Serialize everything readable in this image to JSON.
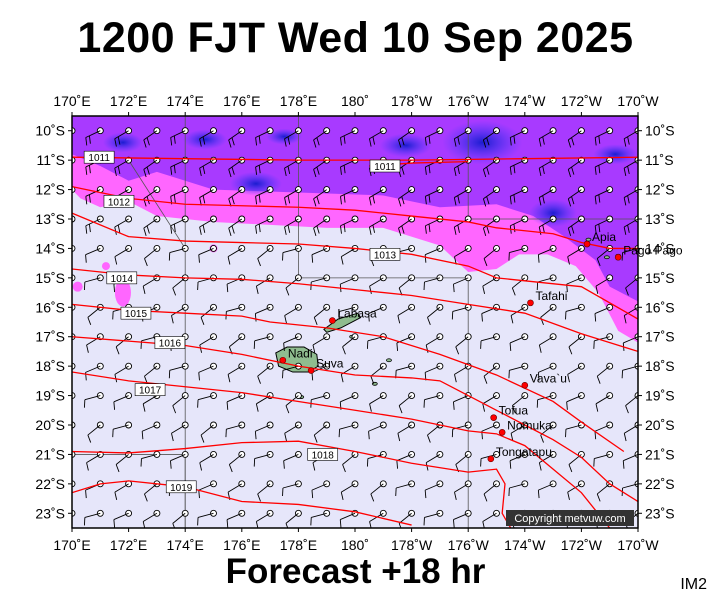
{
  "title": "1200 FJT Wed 10 Sep 2025",
  "footer": "Forecast +18 hr",
  "image_tag": "IM2",
  "copyright": "Copyright metvuw.com",
  "map_extent": {
    "lon_min": 170,
    "lon_max": 190,
    "lat_max": -9.5,
    "lat_min": -23.5
  },
  "lon_ticks": [
    {
      "lon": 170,
      "label": "170˚E"
    },
    {
      "lon": 172,
      "label": "172˚E"
    },
    {
      "lon": 174,
      "label": "174˚E"
    },
    {
      "lon": 176,
      "label": "176˚E"
    },
    {
      "lon": 178,
      "label": "178˚E"
    },
    {
      "lon": 180,
      "label": "180˚"
    },
    {
      "lon": 182,
      "label": "178˚W"
    },
    {
      "lon": 184,
      "label": "176˚W"
    },
    {
      "lon": 186,
      "label": "174˚W"
    },
    {
      "lon": 188,
      "label": "172˚W"
    },
    {
      "lon": 190,
      "label": "170˚W"
    }
  ],
  "lat_ticks": [
    {
      "lat": -10,
      "label": "10˚S"
    },
    {
      "lat": -11,
      "label": "11˚S"
    },
    {
      "lat": -12,
      "label": "12˚S"
    },
    {
      "lat": -13,
      "label": "13˚S"
    },
    {
      "lat": -14,
      "label": "14˚S"
    },
    {
      "lat": -15,
      "label": "15˚S"
    },
    {
      "lat": -16,
      "label": "16˚S"
    },
    {
      "lat": -17,
      "label": "17˚S"
    },
    {
      "lat": -18,
      "label": "18˚S"
    },
    {
      "lat": -19,
      "label": "19˚S"
    },
    {
      "lat": -20,
      "label": "20˚S"
    },
    {
      "lat": -21,
      "label": "21˚S"
    },
    {
      "lat": -22,
      "label": "22˚S"
    },
    {
      "lat": -23,
      "label": "23˚S"
    }
  ],
  "isobars": [
    {
      "value": "1011",
      "points": [
        [
          170,
          -10.9
        ],
        [
          174,
          -10.95
        ],
        [
          178,
          -11.0
        ],
        [
          182,
          -11.0
        ],
        [
          186,
          -10.95
        ],
        [
          190,
          -10.9
        ]
      ],
      "label_at": [
        170.5,
        -10.9
      ]
    },
    {
      "value": "1011",
      "points": [
        [
          180.5,
          -11.2
        ],
        [
          182,
          -11.1
        ],
        [
          184,
          -11.05
        ]
      ],
      "label_at": [
        180.6,
        -11.2
      ]
    },
    {
      "value": "1012",
      "points": [
        [
          170,
          -11.9
        ],
        [
          172,
          -12.3
        ],
        [
          174,
          -12.5
        ],
        [
          176,
          -12.55
        ],
        [
          178,
          -12.6
        ],
        [
          180,
          -12.7
        ],
        [
          182,
          -12.9
        ],
        [
          184,
          -13.1
        ],
        [
          185,
          -13.3
        ],
        [
          186,
          -13.4
        ],
        [
          187,
          -13.5
        ],
        [
          188,
          -13.8
        ],
        [
          189,
          -14.0
        ],
        [
          190,
          -14.0
        ]
      ],
      "label_at": [
        171.2,
        -12.4
      ]
    },
    {
      "value": "1013",
      "points": [
        [
          170,
          -12.8
        ],
        [
          172,
          -13.6
        ],
        [
          174,
          -13.75
        ],
        [
          176,
          -13.8
        ],
        [
          178,
          -13.85
        ],
        [
          180,
          -14.0
        ],
        [
          182,
          -14.2
        ],
        [
          184,
          -14.6
        ],
        [
          185,
          -15.0
        ],
        [
          186,
          -15.1
        ],
        [
          188,
          -15.3
        ],
        [
          190,
          -16.4
        ]
      ],
      "label_at": [
        180.6,
        -14.2
      ]
    },
    {
      "value": "1014",
      "points": [
        [
          170,
          -14.7
        ],
        [
          172,
          -14.9
        ],
        [
          174,
          -15.0
        ],
        [
          176,
          -15.05
        ],
        [
          178,
          -15.2
        ],
        [
          180,
          -15.4
        ],
        [
          182,
          -15.6
        ],
        [
          184,
          -15.9
        ],
        [
          186,
          -16.2
        ],
        [
          188,
          -16.9
        ],
        [
          190,
          -17.5
        ]
      ],
      "label_at": [
        171.3,
        -15.0
      ]
    },
    {
      "value": "1015",
      "points": [
        [
          170,
          -15.9
        ],
        [
          172,
          -16.1
        ],
        [
          174,
          -16.2
        ],
        [
          176,
          -16.3
        ],
        [
          177,
          -16.5
        ],
        [
          179,
          -16.7
        ],
        [
          181,
          -17.0
        ],
        [
          183,
          -17.6
        ],
        [
          185,
          -18.3
        ],
        [
          187,
          -19.2
        ],
        [
          188,
          -19.9
        ],
        [
          189.5,
          -20.9
        ]
      ],
      "label_at": [
        171.8,
        -16.2
      ]
    },
    {
      "value": "1016",
      "points": [
        [
          170,
          -17.0
        ],
        [
          172,
          -17.15
        ],
        [
          174,
          -17.3
        ],
        [
          176,
          -17.6
        ],
        [
          178,
          -18.0
        ],
        [
          180,
          -18.3
        ],
        [
          182,
          -18.4
        ],
        [
          183,
          -18.5
        ],
        [
          184,
          -19.0
        ],
        [
          185,
          -19.5
        ],
        [
          186,
          -20.0
        ],
        [
          187,
          -20.5
        ],
        [
          188,
          -21.1
        ],
        [
          189,
          -22.0
        ],
        [
          190,
          -22.6
        ]
      ],
      "label_at": [
        173.0,
        -17.2
      ]
    },
    {
      "value": "1017",
      "points": [
        [
          170,
          -18.2
        ],
        [
          172,
          -18.5
        ],
        [
          174,
          -18.7
        ],
        [
          176,
          -18.9
        ],
        [
          178,
          -19.2
        ],
        [
          180,
          -19.5
        ],
        [
          182,
          -19.8
        ],
        [
          184,
          -20.2
        ],
        [
          185,
          -20.3
        ],
        [
          186,
          -20.7
        ],
        [
          187,
          -21.5
        ],
        [
          188,
          -22.3
        ],
        [
          189,
          -23.5
        ]
      ],
      "label_at": [
        172.3,
        -18.8
      ]
    },
    {
      "value": "1018",
      "points": [
        [
          170,
          -20.9
        ],
        [
          172,
          -20.95
        ],
        [
          174,
          -20.8
        ],
        [
          176,
          -20.6
        ],
        [
          178,
          -20.55
        ],
        [
          180,
          -20.9
        ],
        [
          182,
          -21.3
        ],
        [
          184,
          -21.6
        ],
        [
          185,
          -21.5
        ],
        [
          185.3,
          -22.0
        ],
        [
          185.2,
          -23.0
        ],
        [
          185.5,
          -23.5
        ]
      ],
      "label_at": [
        178.4,
        -21.0
      ]
    },
    {
      "value": "1019",
      "points": [
        [
          170,
          -22.3
        ],
        [
          171,
          -22.0
        ],
        [
          172,
          -21.9
        ],
        [
          174,
          -22.1
        ],
        [
          176,
          -22.6
        ],
        [
          178,
          -22.7
        ],
        [
          180,
          -22.95
        ],
        [
          182,
          -23.4
        ]
      ],
      "label_at": [
        173.4,
        -22.1
      ]
    }
  ],
  "places": [
    {
      "name": "Labasa",
      "lon": 179.2,
      "lat": -16.45
    },
    {
      "name": "Nadi",
      "lon": 177.45,
      "lat": -17.8
    },
    {
      "name": "Suva",
      "lon": 178.45,
      "lat": -18.15
    },
    {
      "name": "Apia",
      "lon": 188.2,
      "lat": -13.85
    },
    {
      "name": "Pago Pago",
      "lon": 189.3,
      "lat": -14.3
    },
    {
      "name": "Tafahi",
      "lon": 186.2,
      "lat": -15.85
    },
    {
      "name": "Vava`u",
      "lon": 186.0,
      "lat": -18.65
    },
    {
      "name": "Tofua",
      "lon": 184.9,
      "lat": -19.75
    },
    {
      "name": "Nomuka",
      "lon": 185.2,
      "lat": -20.25
    },
    {
      "name": "Tongatapu",
      "lon": 184.8,
      "lat": -21.15
    }
  ],
  "colors": {
    "background": "#e6e6fa",
    "precip_light": "#ff66ff",
    "precip_mid": "#9933ff",
    "precip_heavy": "#3333cc",
    "isobar": "#ff0000",
    "land": "#8fbc8f",
    "city_dot": "#ff0000"
  }
}
